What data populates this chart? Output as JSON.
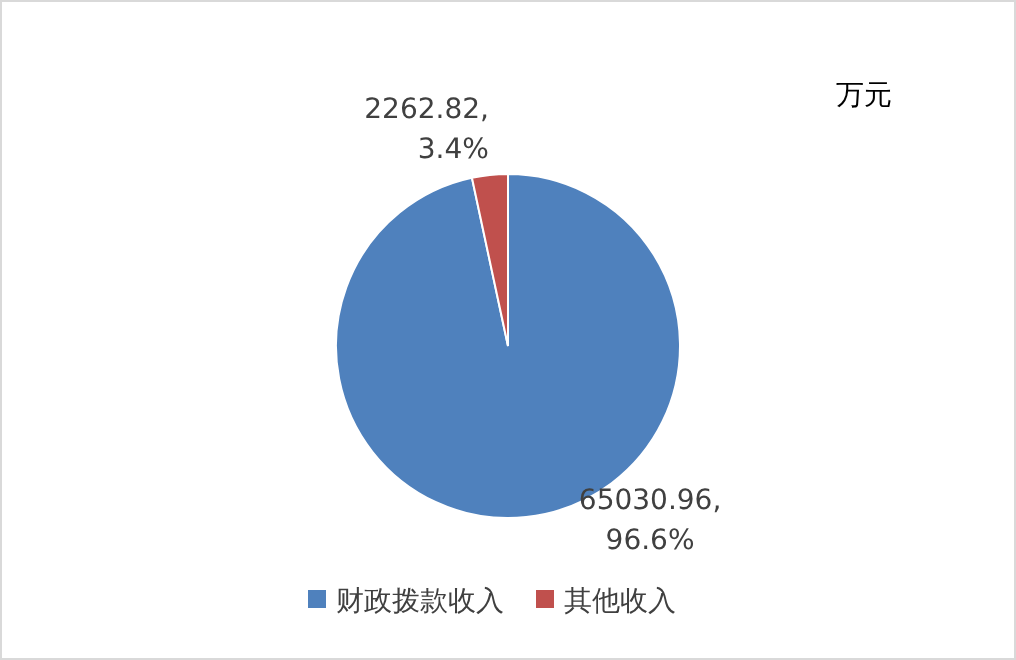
{
  "chart_data": {
    "type": "pie",
    "categories": [
      "财政拨款收入",
      "其他收入"
    ],
    "values": [
      65030.96,
      2262.82
    ],
    "colors": [
      "#4f81bd",
      "#c0504d"
    ],
    "value_labels": [
      "65030.96,\n96.6%",
      "2262.82,\n3.4%"
    ],
    "annotations": [
      "万元"
    ],
    "legend": "bottom"
  }
}
